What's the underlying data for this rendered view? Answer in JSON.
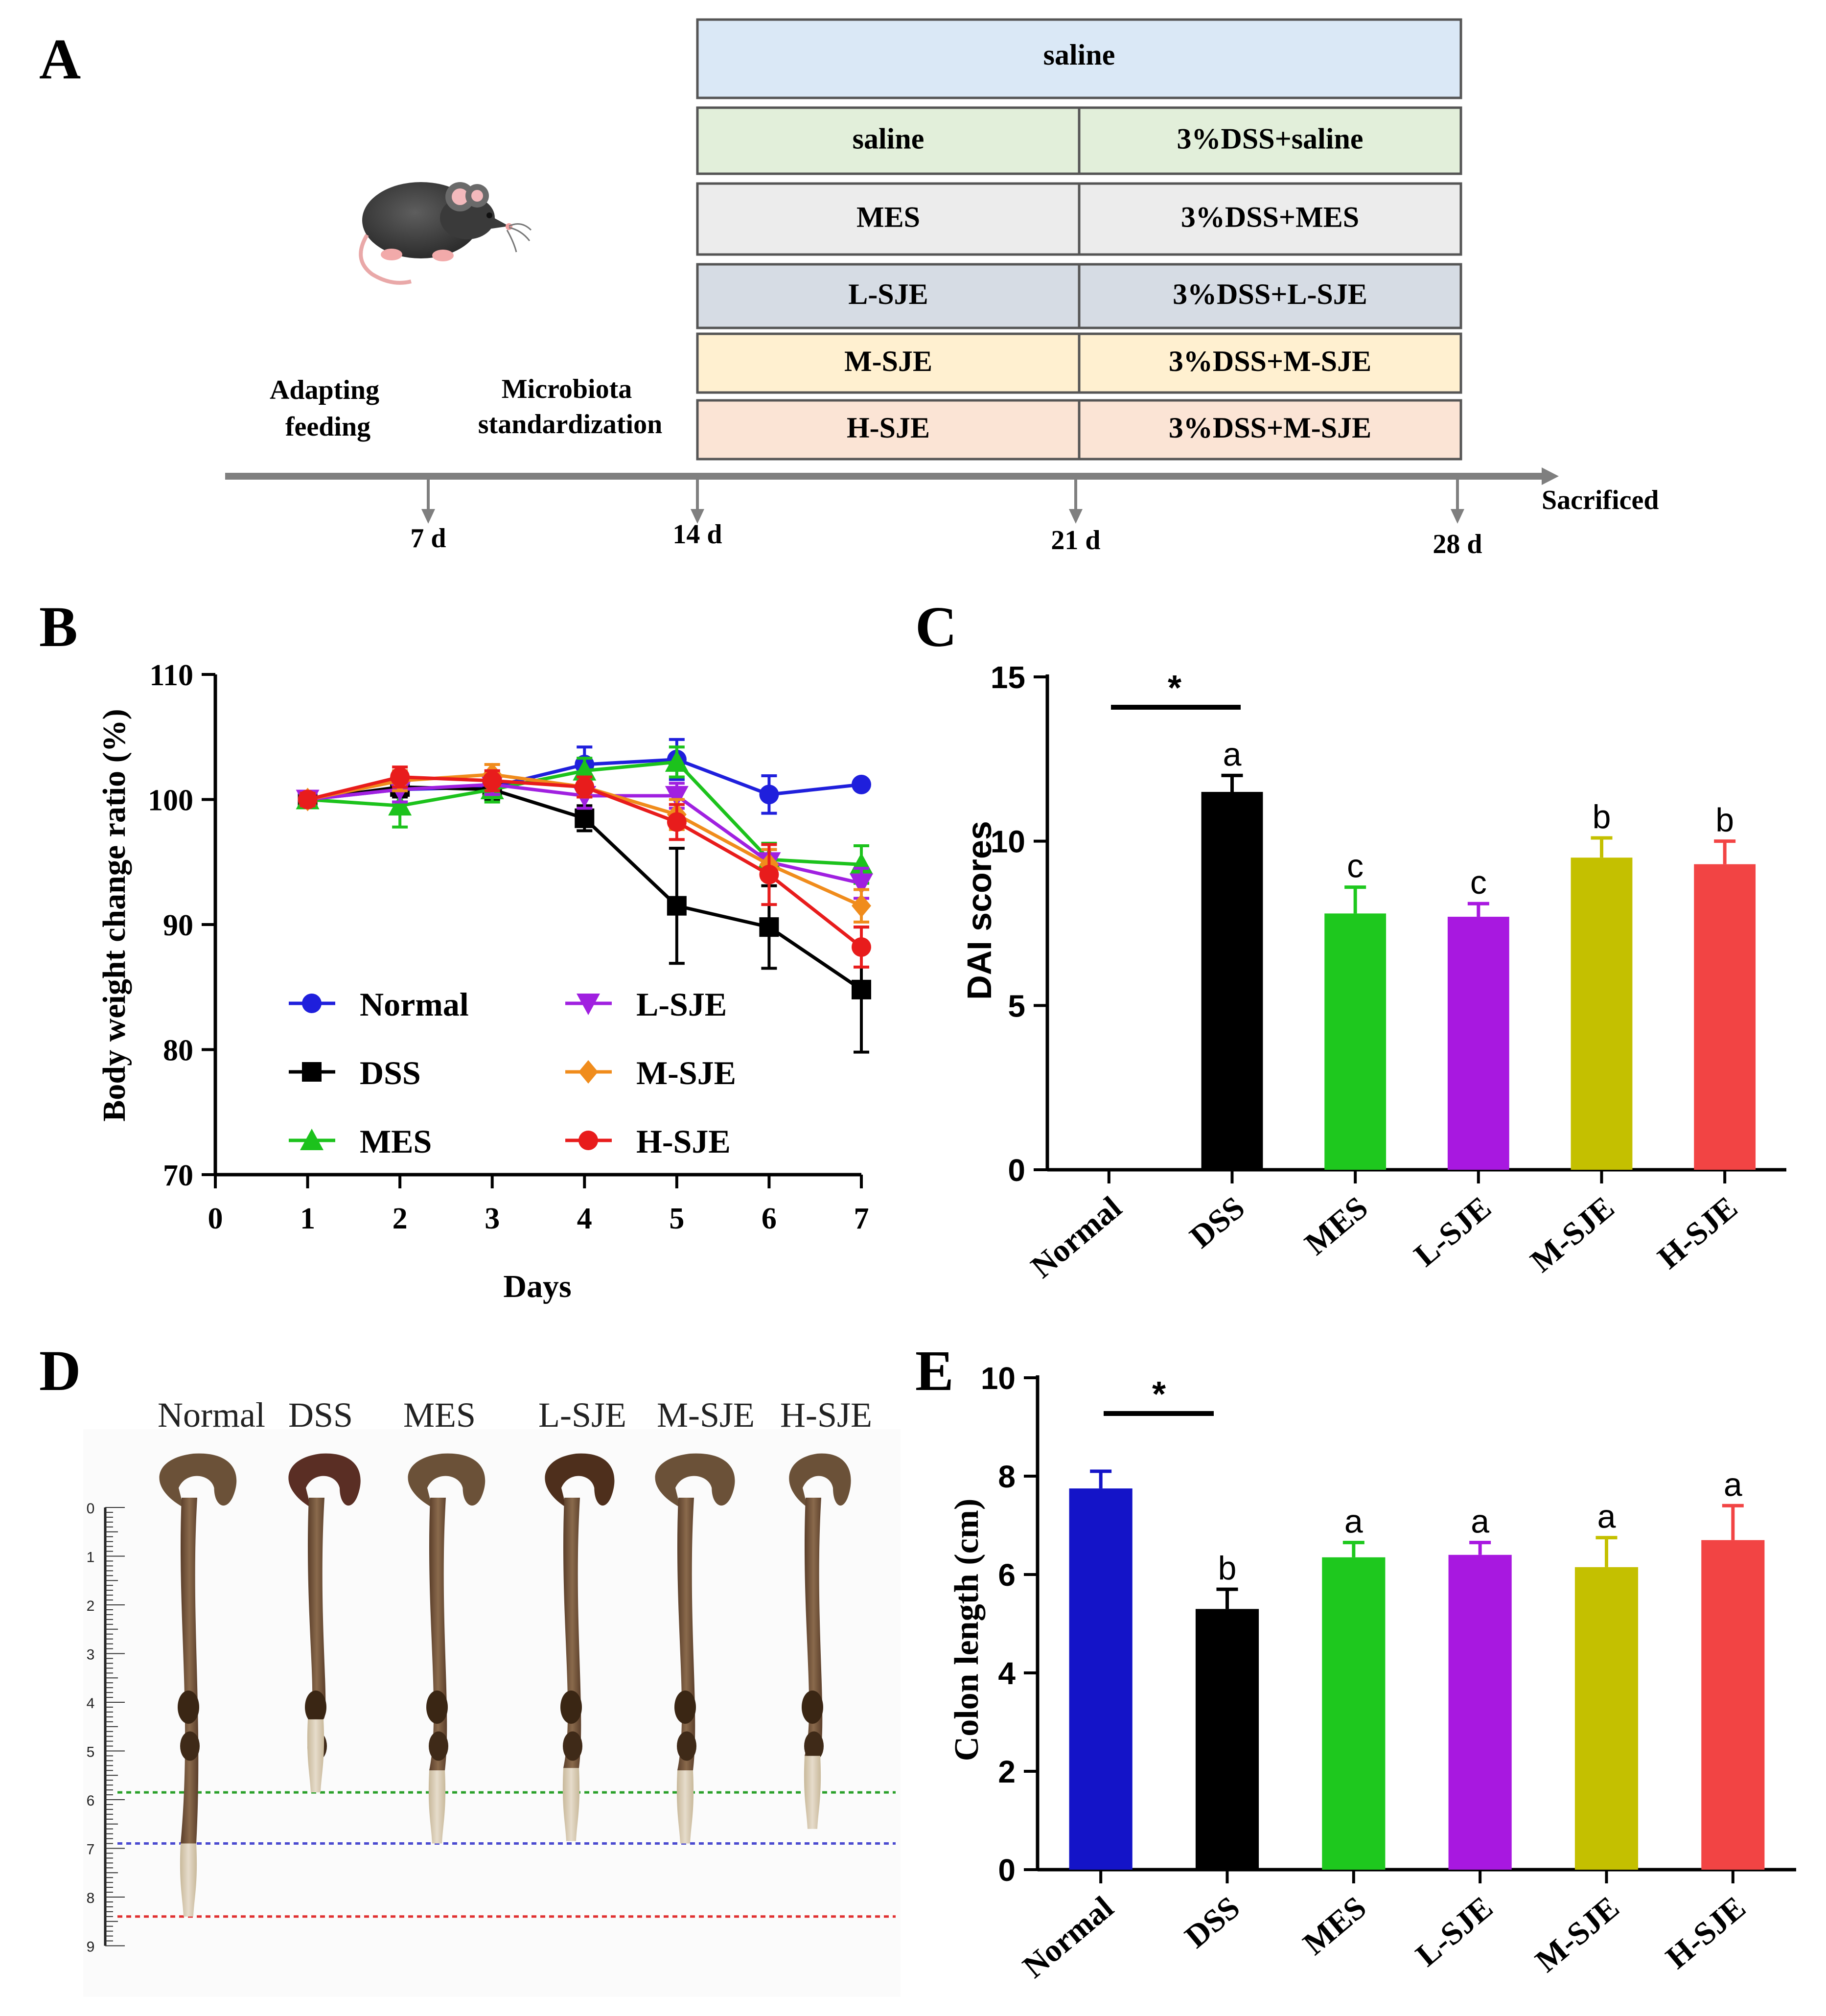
{
  "panels": {
    "A": "A",
    "B": "B",
    "C": "C",
    "D": "D",
    "E": "E"
  },
  "colors": {
    "Normal": "#1f1fdc",
    "DSS": "#000000",
    "MES": "#1cc21c",
    "L-SJE": "#a020e0",
    "M-SJE": "#f08c1c",
    "H-SJE": "#e81c1c",
    "bar_Normal": "#1414c8",
    "bar_DSS": "#000000",
    "bar_MES": "#1ec81e",
    "bar_L-SJE": "#a818e0",
    "bar_M-SJE": "#c4c000",
    "bar_H-SJE": "#f24444"
  },
  "design": {
    "top_row": "saline",
    "rows": [
      {
        "left": "saline",
        "right": "3%DSS+saline",
        "fill": "#e2efda",
        "edge": "#b9d3a8"
      },
      {
        "left": "MES",
        "right": "3%DSS+MES",
        "fill": "#ececec",
        "edge": "#c9c9c9"
      },
      {
        "left": "L-SJE",
        "right": "3%DSS+L-SJE",
        "fill": "#d6dce4",
        "edge": "#aeb8c6"
      },
      {
        "left": "M-SJE",
        "right": "3%DSS+M-SJE",
        "fill": "#fff0d0",
        "edge": "#efcf86"
      },
      {
        "left": "H-SJE",
        "right": "3%DSS+M-SJE",
        "fill": "#fbe4d5",
        "edge": "#e8b89a"
      }
    ],
    "top_fill": "#dae8f6",
    "phase1": [
      "Adapting",
      "feeding"
    ],
    "phase2": [
      "Microbiota",
      "standardization"
    ],
    "ticks": [
      "7 d",
      "14 d",
      "21 d",
      "28 d"
    ],
    "end_label": "Sacrificed"
  },
  "chart_data": [
    {
      "type": "line",
      "panel": "B",
      "xlabel": "Days",
      "ylabel": "Body weight change ratio (%)",
      "xlim": [
        0,
        7
      ],
      "ylim": [
        70,
        110
      ],
      "xticks": [
        "0",
        "1",
        "2",
        "3",
        "4",
        "5",
        "6",
        "7"
      ],
      "yticks": [
        "70",
        "80",
        "90",
        "100",
        "110"
      ],
      "x": [
        1,
        2,
        3,
        4,
        5,
        6,
        7
      ],
      "series": [
        {
          "name": "Normal",
          "marker": "circle",
          "values": [
            100,
            100.8,
            101.0,
            102.8,
            103.2,
            100.4,
            101.2
          ],
          "errors": [
            0.5,
            1.0,
            1.0,
            1.4,
            1.6,
            1.5,
            0.3
          ]
        },
        {
          "name": "DSS",
          "marker": "square",
          "values": [
            100,
            101.0,
            100.8,
            98.5,
            91.5,
            89.8,
            84.8
          ],
          "errors": [
            0.5,
            0.8,
            0.8,
            1.0,
            4.6,
            3.3,
            5.0
          ]
        },
        {
          "name": "MES",
          "marker": "triangle-up",
          "values": [
            100,
            99.5,
            100.8,
            102.3,
            103.0,
            95.2,
            94.8
          ],
          "errors": [
            0.5,
            1.7,
            1.0,
            1.0,
            1.2,
            1.3,
            1.5
          ]
        },
        {
          "name": "L-SJE",
          "marker": "triangle-down",
          "values": [
            100,
            100.8,
            101.2,
            100.3,
            100.3,
            95.0,
            93.3
          ],
          "errors": [
            0.5,
            1.0,
            0.8,
            1.0,
            1.0,
            1.0,
            1.2
          ]
        },
        {
          "name": "M-SJE",
          "marker": "diamond",
          "values": [
            100,
            101.5,
            102.0,
            101.0,
            98.8,
            94.8,
            91.5
          ],
          "errors": [
            0.5,
            0.8,
            0.8,
            0.8,
            1.2,
            1.2,
            1.3
          ]
        },
        {
          "name": "H-SJE",
          "marker": "circle",
          "values": [
            100,
            101.8,
            101.5,
            101.0,
            98.2,
            94.0,
            88.2
          ],
          "errors": [
            0.5,
            0.8,
            0.8,
            0.8,
            1.4,
            2.4,
            1.6
          ]
        }
      ],
      "legend": [
        [
          "Normal",
          "DSS",
          "MES"
        ],
        [
          "L-SJE",
          "M-SJE",
          "H-SJE"
        ]
      ]
    },
    {
      "type": "bar",
      "panel": "C",
      "ylabel": "DAI scores",
      "ylim": [
        0,
        15
      ],
      "yticks": [
        "0",
        "5",
        "10",
        "15"
      ],
      "categories": [
        "Normal",
        "DSS",
        "MES",
        "L-SJE",
        "M-SJE",
        "H-SJE"
      ],
      "values": [
        0,
        11.5,
        7.8,
        7.7,
        9.5,
        9.3
      ],
      "errors": [
        0,
        0.5,
        0.8,
        0.4,
        0.6,
        0.7
      ],
      "letters": [
        "",
        "a",
        "c",
        "c",
        "b",
        "b"
      ],
      "significance": "*"
    },
    {
      "type": "bar",
      "panel": "E",
      "ylabel": "Colon length (cm)",
      "ylim": [
        0,
        10
      ],
      "yticks": [
        "0",
        "2",
        "4",
        "6",
        "8",
        "10"
      ],
      "categories": [
        "Normal",
        "DSS",
        "MES",
        "L-SJE",
        "M-SJE",
        "H-SJE"
      ],
      "values": [
        7.75,
        5.3,
        6.35,
        6.4,
        6.15,
        6.7
      ],
      "errors": [
        0.35,
        0.4,
        0.3,
        0.25,
        0.6,
        0.7
      ],
      "letters": [
        "",
        "b",
        "a",
        "a",
        "a",
        "a"
      ],
      "significance": "*"
    }
  ],
  "photo": {
    "labels": [
      "Normal",
      "DSS",
      "MES",
      "L-SJE",
      "M-SJE",
      "H-SJE"
    ],
    "ruler": [
      "0",
      "1",
      "2",
      "3",
      "4",
      "5",
      "6",
      "7",
      "8",
      "9"
    ],
    "colon_lengths_cm": [
      8.4,
      5.85,
      6.9,
      6.85,
      6.9,
      6.6
    ],
    "lines": [
      {
        "cm": 5.85,
        "color": "#2aa02a"
      },
      {
        "cm": 6.9,
        "color": "#4a4ad0"
      },
      {
        "cm": 8.4,
        "color": "#e03030"
      }
    ]
  }
}
